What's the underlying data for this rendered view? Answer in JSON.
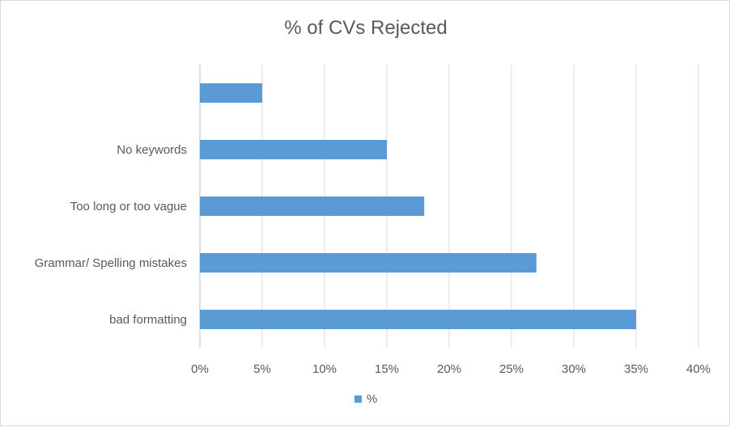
{
  "chart_data": {
    "type": "bar",
    "orientation": "horizontal",
    "title": "% of CVs Rejected",
    "categories": [
      "",
      "No keywords",
      "Too long or too vague",
      "Grammar/ Spelling mistakes",
      "bad formatting"
    ],
    "series": [
      {
        "name": "%",
        "values": [
          5,
          15,
          18,
          27,
          35
        ],
        "color": "#5b9bd5"
      }
    ],
    "xlim": [
      0,
      40
    ],
    "x_ticks": [
      0,
      5,
      10,
      15,
      20,
      25,
      30,
      35,
      40
    ],
    "x_tick_labels": [
      "0%",
      "5%",
      "10%",
      "15%",
      "20%",
      "25%",
      "30%",
      "35%",
      "40%"
    ],
    "grid": true,
    "legend_position": "bottom"
  }
}
